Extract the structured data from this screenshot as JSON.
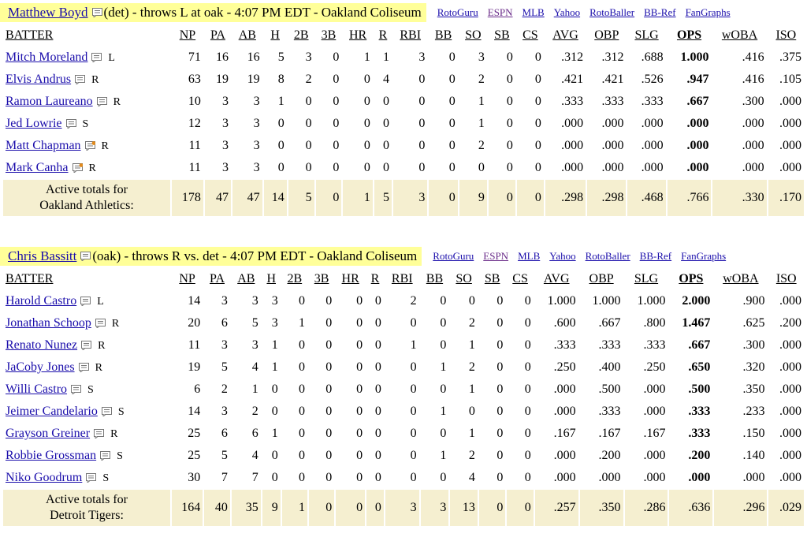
{
  "columns": [
    "BATTER",
    "NP",
    "PA",
    "AB",
    "H",
    "2B",
    "3B",
    "HR",
    "R",
    "RBI",
    "BB",
    "SO",
    "SB",
    "CS",
    "AVG",
    "OBP",
    "SLG",
    "OPS",
    "wOBA",
    "ISO"
  ],
  "links": [
    "RotoGuru",
    "ESPN",
    "MLB",
    "Yahoo",
    "RotoBaller",
    "BB-Ref",
    "FanGraphs"
  ],
  "games": [
    {
      "pitcher": "Matthew Boyd",
      "pitcher_info": "(det) - throws L at oak - 4:07 PM EDT - Oakland Coliseum",
      "batters": [
        {
          "name": "Mitch Moreland",
          "hand": "L",
          "stats": [
            "71",
            "16",
            "16",
            "5",
            "3",
            "0",
            "1",
            "1",
            "3",
            "0",
            "3",
            "0",
            "0",
            ".312",
            ".312",
            ".688",
            "1.000",
            ".416",
            ".375"
          ]
        },
        {
          "name": "Elvis Andrus",
          "hand": "R",
          "stats": [
            "63",
            "19",
            "19",
            "8",
            "2",
            "0",
            "0",
            "4",
            "0",
            "0",
            "2",
            "0",
            "0",
            ".421",
            ".421",
            ".526",
            ".947",
            ".416",
            ".105"
          ]
        },
        {
          "name": "Ramon Laureano",
          "hand": "R",
          "stats": [
            "10",
            "3",
            "3",
            "1",
            "0",
            "0",
            "0",
            "0",
            "0",
            "0",
            "1",
            "0",
            "0",
            ".333",
            ".333",
            ".333",
            ".667",
            ".300",
            ".000"
          ]
        },
        {
          "name": "Jed Lowrie",
          "hand": "S",
          "stats": [
            "12",
            "3",
            "3",
            "0",
            "0",
            "0",
            "0",
            "0",
            "0",
            "0",
            "1",
            "0",
            "0",
            ".000",
            ".000",
            ".000",
            ".000",
            ".000",
            ".000"
          ]
        },
        {
          "name": "Matt Chapman",
          "hand": "R",
          "stats": [
            "11",
            "3",
            "3",
            "0",
            "0",
            "0",
            "0",
            "0",
            "0",
            "0",
            "2",
            "0",
            "0",
            ".000",
            ".000",
            ".000",
            ".000",
            ".000",
            ".000"
          ]
        },
        {
          "name": "Mark Canha",
          "hand": "R",
          "stats": [
            "11",
            "3",
            "3",
            "0",
            "0",
            "0",
            "0",
            "0",
            "0",
            "0",
            "0",
            "0",
            "0",
            ".000",
            ".000",
            ".000",
            ".000",
            ".000",
            ".000"
          ]
        }
      ],
      "totals": {
        "label_line1": "Active totals for",
        "label_line2": "Oakland Athletics:",
        "stats": [
          "178",
          "47",
          "47",
          "14",
          "5",
          "0",
          "1",
          "5",
          "3",
          "0",
          "9",
          "0",
          "0",
          ".298",
          ".298",
          ".468",
          ".766",
          ".330",
          ".170"
        ]
      }
    },
    {
      "pitcher": "Chris Bassitt",
      "pitcher_info": "(oak) - throws R vs. det - 4:07 PM EDT - Oakland Coliseum",
      "batters": [
        {
          "name": "Harold Castro",
          "hand": "L",
          "stats": [
            "14",
            "3",
            "3",
            "3",
            "0",
            "0",
            "0",
            "0",
            "2",
            "0",
            "0",
            "0",
            "0",
            "1.000",
            "1.000",
            "1.000",
            "2.000",
            ".900",
            ".000"
          ]
        },
        {
          "name": "Jonathan Schoop",
          "hand": "R",
          "stats": [
            "20",
            "6",
            "5",
            "3",
            "1",
            "0",
            "0",
            "0",
            "0",
            "0",
            "2",
            "0",
            "0",
            ".600",
            ".667",
            ".800",
            "1.467",
            ".625",
            ".200"
          ]
        },
        {
          "name": "Renato Nunez",
          "hand": "R",
          "stats": [
            "11",
            "3",
            "3",
            "1",
            "0",
            "0",
            "0",
            "0",
            "1",
            "0",
            "1",
            "0",
            "0",
            ".333",
            ".333",
            ".333",
            ".667",
            ".300",
            ".000"
          ]
        },
        {
          "name": "JaCoby Jones",
          "hand": "R",
          "stats": [
            "19",
            "5",
            "4",
            "1",
            "0",
            "0",
            "0",
            "0",
            "0",
            "1",
            "2",
            "0",
            "0",
            ".250",
            ".400",
            ".250",
            ".650",
            ".320",
            ".000"
          ]
        },
        {
          "name": "Willi Castro",
          "hand": "S",
          "stats": [
            "6",
            "2",
            "1",
            "0",
            "0",
            "0",
            "0",
            "0",
            "0",
            "0",
            "1",
            "0",
            "0",
            ".000",
            ".500",
            ".000",
            ".500",
            ".350",
            ".000"
          ]
        },
        {
          "name": "Jeimer Candelario",
          "hand": "S",
          "stats": [
            "14",
            "3",
            "2",
            "0",
            "0",
            "0",
            "0",
            "0",
            "0",
            "1",
            "0",
            "0",
            "0",
            ".000",
            ".333",
            ".000",
            ".333",
            ".233",
            ".000"
          ]
        },
        {
          "name": "Grayson Greiner",
          "hand": "R",
          "stats": [
            "25",
            "6",
            "6",
            "1",
            "0",
            "0",
            "0",
            "0",
            "0",
            "0",
            "1",
            "0",
            "0",
            ".167",
            ".167",
            ".167",
            ".333",
            ".150",
            ".000"
          ]
        },
        {
          "name": "Robbie Grossman",
          "hand": "S",
          "stats": [
            "25",
            "5",
            "4",
            "0",
            "0",
            "0",
            "0",
            "0",
            "0",
            "1",
            "2",
            "0",
            "0",
            ".000",
            ".200",
            ".000",
            ".200",
            ".140",
            ".000"
          ]
        },
        {
          "name": "Niko Goodrum",
          "hand": "S",
          "stats": [
            "30",
            "7",
            "7",
            "0",
            "0",
            "0",
            "0",
            "0",
            "0",
            "0",
            "4",
            "0",
            "0",
            ".000",
            ".000",
            ".000",
            ".000",
            ".000",
            ".000"
          ]
        }
      ],
      "totals": {
        "label_line1": "Active totals for",
        "label_line2": "Detroit Tigers:",
        "stats": [
          "164",
          "40",
          "35",
          "9",
          "1",
          "0",
          "0",
          "0",
          "3",
          "3",
          "13",
          "0",
          "0",
          ".257",
          ".350",
          ".286",
          ".636",
          ".296",
          ".029"
        ]
      }
    }
  ]
}
